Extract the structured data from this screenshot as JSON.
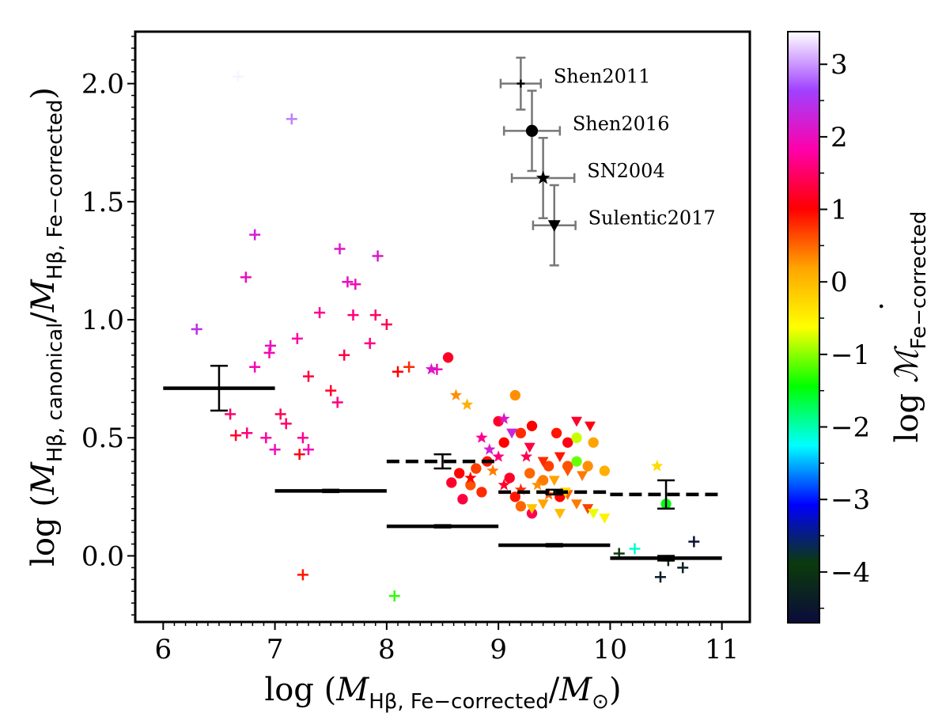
{
  "chart_data": {
    "type": "scatter",
    "title": "",
    "xlabel": {
      "prefix": "log (",
      "M": "M",
      "sub": "Hβ, Fe−corrected",
      "slash": "/",
      "Msun": "M",
      "sun_sub": "⊙",
      "suffix": ")"
    },
    "ylabel": {
      "prefix": "log (",
      "M1": "M",
      "sub1": "Hβ, canonical",
      "slash": "/",
      "M2": "M",
      "sub2": "Hβ, Fe−corrected",
      "suffix": ")"
    },
    "colorbar_label": {
      "prefix": "log ",
      "M": "ℳ",
      "dot": "˙",
      "sub": "Fe−corrected"
    },
    "xlim": [
      5.75,
      11.25
    ],
    "ylim": [
      -0.28,
      2.22
    ],
    "xticks": [
      6,
      7,
      8,
      9,
      10,
      11
    ],
    "xtick_labels": [
      "6",
      "7",
      "8",
      "9",
      "10",
      "11"
    ],
    "yticks": [
      0.0,
      0.5,
      1.0,
      1.5,
      2.0
    ],
    "ytick_labels": [
      "0.0",
      "0.5",
      "1.0",
      "1.5",
      "2.0"
    ],
    "colorbar_range": [
      -4.7,
      3.45
    ],
    "colorbar_ticks": [
      -4,
      -3,
      -2,
      -1,
      0,
      1,
      2,
      3
    ],
    "colorbar_tick_labels": [
      "−4",
      "−3",
      "−2",
      "−1",
      "0",
      "1",
      "2",
      "3"
    ],
    "colormap": [
      "#0b0b3a",
      "#0b3a0b",
      "#0000ff",
      "#00ffff",
      "#00ff00",
      "#ffff00",
      "#ffa500",
      "#ff0000",
      "#ff00aa",
      "#a040ff",
      "#ffffff"
    ],
    "series": [
      {
        "name": "Shen2011",
        "marker": "plus",
        "points": [
          [
            6.3,
            0.96,
            2.4
          ],
          [
            6.67,
            2.03,
            3.4
          ],
          [
            7.15,
            1.85,
            2.9
          ],
          [
            6.74,
            1.18,
            2.0
          ],
          [
            6.82,
            1.36,
            2.2
          ],
          [
            7.58,
            1.3,
            2.1
          ],
          [
            7.65,
            1.16,
            2.0
          ],
          [
            7.72,
            1.15,
            2.0
          ],
          [
            7.92,
            1.27,
            2.1
          ],
          [
            7.2,
            0.92,
            1.8
          ],
          [
            6.82,
            0.8,
            1.9
          ],
          [
            6.95,
            0.86,
            1.9
          ],
          [
            6.96,
            0.89,
            2.0
          ],
          [
            7.4,
            1.03,
            1.7
          ],
          [
            7.7,
            1.02,
            1.6
          ],
          [
            7.9,
            1.02,
            1.5
          ],
          [
            8.0,
            0.98,
            1.4
          ],
          [
            7.85,
            0.9,
            1.6
          ],
          [
            6.6,
            0.6,
            1.5
          ],
          [
            6.75,
            0.52,
            1.6
          ],
          [
            6.92,
            0.5,
            1.8
          ],
          [
            7.1,
            0.56,
            1.5
          ],
          [
            7.05,
            0.6,
            1.4
          ],
          [
            6.65,
            0.51,
            1.2
          ],
          [
            7.3,
            0.76,
            1.3
          ],
          [
            7.5,
            0.7,
            1.2
          ],
          [
            7.56,
            0.65,
            1.6
          ],
          [
            7.62,
            0.85,
            1.3
          ],
          [
            8.1,
            0.78,
            1.0
          ],
          [
            8.2,
            0.8,
            0.8
          ],
          [
            7.25,
            0.5,
            1.7
          ],
          [
            7.3,
            0.45,
            1.9
          ],
          [
            7.22,
            0.43,
            1.1
          ],
          [
            7.0,
            0.45,
            2.0
          ],
          [
            8.45,
            0.79,
            2.0
          ],
          [
            7.25,
            -0.08,
            0.9
          ],
          [
            8.07,
            -0.17,
            -1.3
          ],
          [
            10.22,
            0.03,
            -2.1
          ],
          [
            10.08,
            0.01,
            -3.9
          ],
          [
            10.45,
            -0.09,
            -4.4
          ],
          [
            10.75,
            0.06,
            -4.6
          ],
          [
            10.65,
            -0.05,
            -4.3
          ],
          [
            10.52,
            -0.02,
            -4.2
          ]
        ]
      },
      {
        "name": "Shen2016",
        "marker": "circle",
        "points": [
          [
            8.55,
            0.84,
            1.2
          ],
          [
            9.15,
            0.68,
            0.3
          ],
          [
            9.62,
            0.48,
            1.1
          ],
          [
            9.7,
            0.5,
            -0.8
          ],
          [
            9.52,
            0.52,
            0.9
          ],
          [
            9.3,
            0.55,
            1.0
          ],
          [
            9.2,
            0.52,
            0.8
          ],
          [
            9.85,
            0.48,
            0.2
          ],
          [
            9.0,
            0.57,
            1.2
          ],
          [
            9.05,
            0.48,
            1.0
          ],
          [
            8.9,
            0.4,
            0.9
          ],
          [
            8.8,
            0.37,
            0.7
          ],
          [
            8.65,
            0.35,
            1.0
          ],
          [
            8.75,
            0.3,
            0.6
          ],
          [
            9.1,
            0.33,
            1.2
          ],
          [
            9.28,
            0.35,
            0.5
          ],
          [
            9.4,
            0.32,
            0.4
          ],
          [
            9.45,
            0.38,
            0.7
          ],
          [
            9.62,
            0.38,
            0.6
          ],
          [
            9.7,
            0.4,
            -1.1
          ],
          [
            9.8,
            0.38,
            0.3
          ],
          [
            9.95,
            0.36,
            0.1
          ],
          [
            8.58,
            0.31,
            1.2
          ],
          [
            8.68,
            0.24,
            1.3
          ],
          [
            9.15,
            0.25,
            0.9
          ],
          [
            9.2,
            0.21,
            0.5
          ],
          [
            9.3,
            0.18,
            1.4
          ],
          [
            9.55,
            0.25,
            1.0
          ],
          [
            8.85,
            0.27,
            0.8
          ],
          [
            10.5,
            0.22,
            -1.5
          ]
        ]
      },
      {
        "name": "SN2004",
        "marker": "star",
        "points": [
          [
            8.4,
            0.79,
            2.1
          ],
          [
            8.62,
            0.68,
            0.3
          ],
          [
            8.72,
            0.64,
            0.1
          ],
          [
            9.05,
            0.58,
            2.1
          ],
          [
            8.85,
            0.5,
            1.7
          ],
          [
            8.92,
            0.45,
            2.2
          ],
          [
            9.0,
            0.42,
            1.6
          ],
          [
            9.25,
            0.42,
            1.4
          ],
          [
            8.75,
            0.33,
            1.0
          ],
          [
            8.95,
            0.36,
            0.4
          ],
          [
            9.05,
            0.3,
            1.2
          ],
          [
            9.2,
            0.28,
            0.8
          ],
          [
            9.35,
            0.3,
            0.3
          ],
          [
            9.45,
            0.26,
            0.5
          ],
          [
            10.42,
            0.38,
            -0.3
          ]
        ]
      },
      {
        "name": "Sulentic2017",
        "marker": "triangle",
        "points": [
          [
            9.12,
            0.52,
            2.3
          ],
          [
            9.7,
            0.57,
            1.2
          ],
          [
            9.82,
            0.55,
            1.1
          ],
          [
            9.28,
            0.46,
            1.3
          ],
          [
            9.4,
            0.4,
            0.8
          ],
          [
            9.55,
            0.42,
            0.9
          ],
          [
            9.62,
            0.36,
            0.6
          ],
          [
            9.75,
            0.34,
            0.4
          ],
          [
            9.5,
            0.32,
            0.2
          ],
          [
            9.62,
            0.26,
            0.5
          ],
          [
            9.7,
            0.22,
            0.4
          ],
          [
            9.8,
            0.2,
            0.7
          ],
          [
            9.85,
            0.18,
            -0.7
          ],
          [
            9.95,
            0.16,
            -0.5
          ],
          [
            9.4,
            0.22,
            0.2
          ],
          [
            9.3,
            0.2,
            -0.1
          ],
          [
            9.6,
            0.27,
            -0.3
          ],
          [
            9.55,
            0.18,
            0.0
          ]
        ]
      }
    ],
    "binned_solid": [
      {
        "x": 6.5,
        "y": 0.71,
        "xerr": 0.5,
        "yerr": 0.095
      },
      {
        "x": 7.5,
        "y": 0.275,
        "xerr": 0.5,
        "yerr": 0.005
      },
      {
        "x": 8.5,
        "y": 0.125,
        "xerr": 0.5,
        "yerr": 0.005
      },
      {
        "x": 9.5,
        "y": 0.045,
        "xerr": 0.5,
        "yerr": 0.005
      },
      {
        "x": 10.5,
        "y": -0.01,
        "xerr": 0.5,
        "yerr": 0.01
      }
    ],
    "binned_dashed": [
      {
        "x": 8.5,
        "y": 0.4,
        "xerr": 0.5,
        "yerr": 0.03
      },
      {
        "x": 9.5,
        "y": 0.27,
        "xerr": 0.5,
        "yerr": 0.01
      },
      {
        "x": 10.5,
        "y": 0.26,
        "xerr": 0.5,
        "yerr": 0.06
      }
    ],
    "legend": [
      {
        "label": "Shen2011",
        "marker": "plus",
        "x": 9.2,
        "y": 2.0,
        "xerr": 0.18,
        "yerr": 0.11
      },
      {
        "label": "Shen2016",
        "marker": "circle",
        "x": 9.3,
        "y": 1.8,
        "xerr": 0.25,
        "yerr": 0.17
      },
      {
        "label": "SN2004",
        "marker": "star",
        "x": 9.4,
        "y": 1.6,
        "xerr": 0.28,
        "yerr": 0.17
      },
      {
        "label": "Sulentic2017",
        "marker": "triangle",
        "x": 9.5,
        "y": 1.4,
        "xerr": 0.19,
        "yerr": 0.17
      }
    ],
    "legend_placement": "top-right",
    "grid": false
  }
}
